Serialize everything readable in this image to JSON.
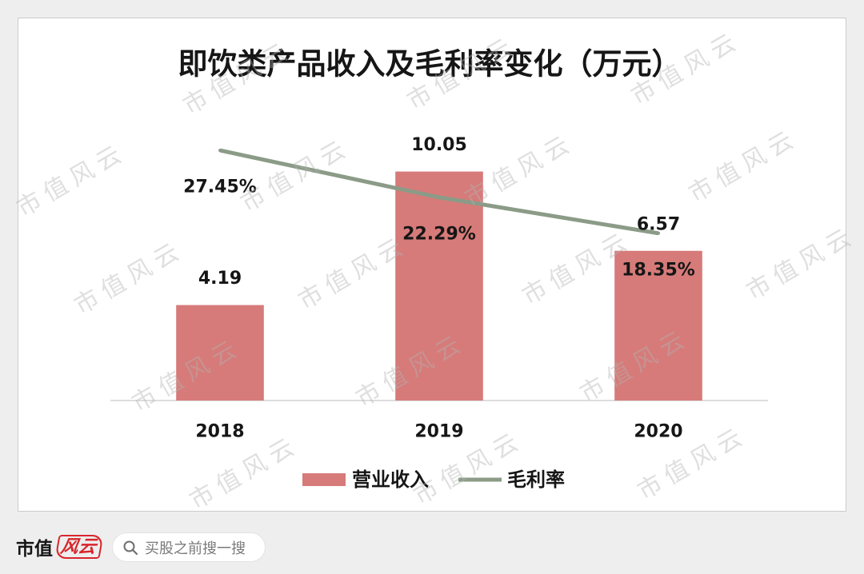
{
  "chart_data": {
    "type": "bar",
    "title": "即饮类产品收入及毛利率变化（万元）",
    "categories": [
      "2018",
      "2019",
      "2020"
    ],
    "series": [
      {
        "name": "营业收入",
        "type": "bar",
        "values": [
          4.19,
          10.05,
          6.57
        ],
        "labels": [
          "4.19",
          "10.05",
          "6.57"
        ],
        "color": "#d67b79"
      },
      {
        "name": "毛利率",
        "type": "line",
        "values": [
          27.45,
          22.29,
          18.35
        ],
        "labels": [
          "27.45%",
          "22.29%",
          "18.35%"
        ],
        "color": "#8b9b87"
      }
    ],
    "ylim": [
      0,
      12
    ],
    "y2lim": [
      0,
      30
    ],
    "grid": false,
    "legend": "bottom"
  },
  "watermark": "市值风云",
  "footer": {
    "logo_text": "市值",
    "logo_script": "风云",
    "search_icon": "search-icon",
    "search_placeholder": "买股之前搜一搜"
  },
  "colors": {
    "page_background": "#eeeeee",
    "card_background": "#ffffff",
    "logo_red": "#d8262b"
  }
}
